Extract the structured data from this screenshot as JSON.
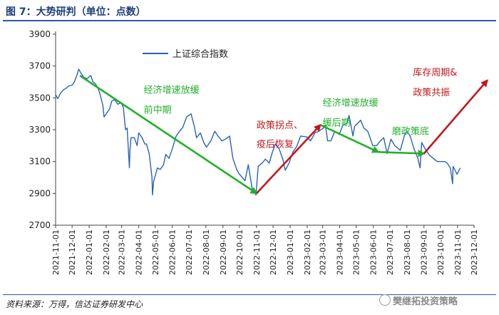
{
  "title": "图 7：大势研判（单位：点数）",
  "source": "资料来源：万得，信达证券研发中心",
  "watermark": "樊继拓投资策略",
  "colors": {
    "series": "#2a62b8",
    "green": "#1fb12a",
    "red": "#c0181e",
    "axis": "#444444"
  },
  "chart_data": {
    "type": "line",
    "series": [
      {
        "name": "上证综合指数",
        "points": [
          [
            "2021-11-01",
            3520
          ],
          [
            "2021-11-05",
            3495
          ],
          [
            "2021-11-10",
            3530
          ],
          [
            "2021-11-15",
            3550
          ],
          [
            "2021-11-20",
            3560
          ],
          [
            "2021-11-25",
            3575
          ],
          [
            "2021-12-01",
            3580
          ],
          [
            "2021-12-05",
            3600
          ],
          [
            "2021-12-10",
            3645
          ],
          [
            "2021-12-13",
            3680
          ],
          [
            "2021-12-18",
            3650
          ],
          [
            "2021-12-22",
            3630
          ],
          [
            "2021-12-28",
            3620
          ],
          [
            "2022-01-04",
            3640
          ],
          [
            "2022-01-08",
            3600
          ],
          [
            "2022-01-12",
            3590
          ],
          [
            "2022-01-17",
            3560
          ],
          [
            "2022-01-21",
            3520
          ],
          [
            "2022-01-26",
            3450
          ],
          [
            "2022-01-28",
            3380
          ],
          [
            "2022-02-07",
            3430
          ],
          [
            "2022-02-11",
            3480
          ],
          [
            "2022-02-16",
            3490
          ],
          [
            "2022-02-22",
            3460
          ],
          [
            "2022-02-28",
            3470
          ],
          [
            "2022-03-04",
            3440
          ],
          [
            "2022-03-08",
            3300
          ],
          [
            "2022-03-11",
            3310
          ],
          [
            "2022-03-15",
            3060
          ],
          [
            "2022-03-16",
            3170
          ],
          [
            "2022-03-18",
            3250
          ],
          [
            "2022-03-24",
            3250
          ],
          [
            "2022-03-29",
            3200
          ],
          [
            "2022-04-01",
            3280
          ],
          [
            "2022-04-07",
            3250
          ],
          [
            "2022-04-12",
            3210
          ],
          [
            "2022-04-15",
            3210
          ],
          [
            "2022-04-20",
            3150
          ],
          [
            "2022-04-25",
            3000
          ],
          [
            "2022-04-26",
            2890
          ],
          [
            "2022-04-28",
            2975
          ],
          [
            "2022-05-05",
            3060
          ],
          [
            "2022-05-10",
            3050
          ],
          [
            "2022-05-16",
            3080
          ],
          [
            "2022-05-20",
            3145
          ],
          [
            "2022-05-26",
            3120
          ],
          [
            "2022-06-01",
            3180
          ],
          [
            "2022-06-08",
            3260
          ],
          [
            "2022-06-14",
            3290
          ],
          [
            "2022-06-20",
            3315
          ],
          [
            "2022-06-27",
            3380
          ],
          [
            "2022-07-05",
            3400
          ],
          [
            "2022-07-11",
            3320
          ],
          [
            "2022-07-15",
            3250
          ],
          [
            "2022-07-22",
            3280
          ],
          [
            "2022-07-28",
            3220
          ],
          [
            "2022-08-02",
            3190
          ],
          [
            "2022-08-10",
            3230
          ],
          [
            "2022-08-17",
            3290
          ],
          [
            "2022-08-23",
            3260
          ],
          [
            "2022-08-30",
            3230
          ],
          [
            "2022-09-05",
            3240
          ],
          [
            "2022-09-13",
            3260
          ],
          [
            "2022-09-19",
            3120
          ],
          [
            "2022-09-26",
            3050
          ],
          [
            "2022-09-30",
            3024
          ],
          [
            "2022-10-11",
            2980
          ],
          [
            "2022-10-17",
            3080
          ],
          [
            "2022-10-24",
            2930
          ],
          [
            "2022-10-31",
            2890
          ],
          [
            "2022-11-04",
            3070
          ],
          [
            "2022-11-11",
            3090
          ],
          [
            "2022-11-17",
            3115
          ],
          [
            "2022-11-24",
            3090
          ],
          [
            "2022-11-29",
            3150
          ],
          [
            "2022-12-05",
            3210
          ],
          [
            "2022-12-12",
            3180
          ],
          [
            "2022-12-19",
            3110
          ],
          [
            "2022-12-23",
            3045
          ],
          [
            "2022-12-30",
            3090
          ],
          [
            "2023-01-06",
            3160
          ],
          [
            "2023-01-13",
            3195
          ],
          [
            "2023-01-20",
            3260
          ],
          [
            "2023-01-31",
            3255
          ],
          [
            "2023-02-07",
            3230
          ],
          [
            "2023-02-15",
            3280
          ],
          [
            "2023-02-22",
            3290
          ],
          [
            "2023-03-02",
            3310
          ],
          [
            "2023-03-06",
            3330
          ],
          [
            "2023-03-10",
            3230
          ],
          [
            "2023-03-16",
            3230
          ],
          [
            "2023-03-23",
            3290
          ],
          [
            "2023-03-31",
            3270
          ],
          [
            "2023-04-07",
            3330
          ],
          [
            "2023-04-14",
            3340
          ],
          [
            "2023-04-18",
            3390
          ],
          [
            "2023-04-25",
            3260
          ],
          [
            "2023-04-28",
            3320
          ],
          [
            "2023-05-09",
            3360
          ],
          [
            "2023-05-15",
            3310
          ],
          [
            "2023-05-22",
            3290
          ],
          [
            "2023-05-31",
            3200
          ],
          [
            "2023-06-07",
            3200
          ],
          [
            "2023-06-14",
            3230
          ],
          [
            "2023-06-20",
            3250
          ],
          [
            "2023-06-26",
            3150
          ],
          [
            "2023-07-03",
            3240
          ],
          [
            "2023-07-10",
            3200
          ],
          [
            "2023-07-20",
            3170
          ],
          [
            "2023-07-28",
            3270
          ],
          [
            "2023-08-01",
            3290
          ],
          [
            "2023-08-07",
            3260
          ],
          [
            "2023-08-14",
            3180
          ],
          [
            "2023-08-21",
            3120
          ],
          [
            "2023-08-25",
            3060
          ],
          [
            "2023-08-28",
            3220
          ],
          [
            "2023-09-04",
            3175
          ],
          [
            "2023-09-11",
            3140
          ],
          [
            "2023-09-18",
            3120
          ],
          [
            "2023-09-25",
            3100
          ],
          [
            "2023-10-09",
            3100
          ],
          [
            "2023-10-13",
            3090
          ],
          [
            "2023-10-19",
            3060
          ],
          [
            "2023-10-23",
            2960
          ],
          [
            "2023-10-24",
            3070
          ],
          [
            "2023-10-31",
            3020
          ],
          [
            "2023-11-06",
            3060
          ]
        ]
      }
    ],
    "x_ticks": [
      "2021-11-01",
      "2021-12-01",
      "2022-01-01",
      "2022-02-01",
      "2022-03-01",
      "2022-04-01",
      "2022-05-01",
      "2022-06-01",
      "2022-07-01",
      "2022-08-01",
      "2022-09-01",
      "2022-10-01",
      "2022-11-01",
      "2022-12-01",
      "2023-01-01",
      "2023-02-01",
      "2023-03-01",
      "2023-04-01",
      "2023-05-01",
      "2023-06-01",
      "2023-07-01",
      "2023-08-01",
      "2023-09-01",
      "2023-10-01",
      "2023-11-01",
      "2023-12-01"
    ],
    "y_ticks": [
      2700,
      2900,
      3100,
      3300,
      3500,
      3700,
      3900
    ],
    "ylim": [
      2700,
      3900
    ],
    "xlim": [
      "2021-11-01",
      "2023-12-01"
    ],
    "grid": false,
    "legend_position": "top-left",
    "trend_lines": [
      {
        "color": "green",
        "from": [
          "2021-12-15",
          3640
        ],
        "to": [
          "2022-11-01",
          2900
        ],
        "arrow": true
      },
      {
        "color": "red",
        "from": [
          "2022-11-01",
          2900
        ],
        "to": [
          "2023-02-25",
          3330
        ],
        "arrow": true
      },
      {
        "color": "green",
        "from": [
          "2023-02-25",
          3330
        ],
        "to": [
          "2023-06-10",
          3160
        ],
        "arrow": true
      },
      {
        "color": "green",
        "from": [
          "2023-06-10",
          3160
        ],
        "to": [
          "2023-09-01",
          3150
        ],
        "arrow": true
      },
      {
        "color": "red",
        "from": [
          "2023-09-01",
          3150
        ],
        "to": [
          "2023-12-25",
          3610
        ],
        "arrow": true
      }
    ],
    "annotations": [
      {
        "text": "经济增速放缓",
        "color": "green",
        "at": [
          "2022-04-10",
          3530
        ]
      },
      {
        "text": "前中期",
        "color": "green",
        "at": [
          "2022-04-10",
          3405
        ]
      },
      {
        "text": "政策拐点、",
        "color": "red",
        "at": [
          "2022-11-01",
          3310
        ]
      },
      {
        "text": "疫后恢复",
        "color": "red",
        "at": [
          "2022-11-01",
          3190
        ]
      },
      {
        "text": "经济增速放缓",
        "color": "green",
        "at": [
          "2023-03-01",
          3450
        ]
      },
      {
        "text": "缓后期",
        "color": "green",
        "at": [
          "2023-03-01",
          3325
        ]
      },
      {
        "text": "磨政策底",
        "color": "green",
        "at": [
          "2023-07-05",
          3270
        ]
      },
      {
        "text": "库存周期&",
        "color": "red",
        "at": [
          "2023-08-12",
          3640
        ]
      },
      {
        "text": "政策共振",
        "color": "red",
        "at": [
          "2023-08-12",
          3515
        ]
      }
    ]
  }
}
